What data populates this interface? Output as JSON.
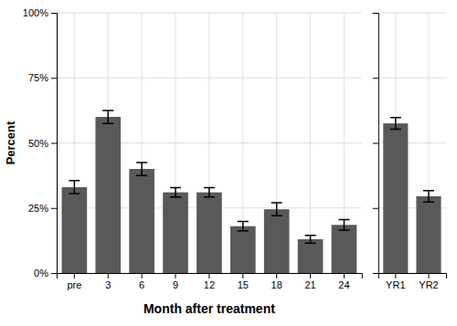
{
  "chart_data": [
    {
      "type": "bar",
      "categories": [
        "pre",
        "3",
        "6",
        "9",
        "12",
        "15",
        "18",
        "21",
        "24"
      ],
      "values": [
        0.33,
        0.6,
        0.4,
        0.31,
        0.31,
        0.18,
        0.245,
        0.13,
        0.185
      ],
      "errors": [
        0.025,
        0.025,
        0.025,
        0.018,
        0.018,
        0.018,
        0.025,
        0.015,
        0.02
      ],
      "color": "#595959",
      "ylabel": "Percent",
      "xlabel": "Month after treatment",
      "ylim": [
        0,
        1.0
      ],
      "yticks": [
        {
          "value": 0,
          "label": "0%"
        },
        {
          "value": 0.25,
          "label": "25%"
        },
        {
          "value": 0.5,
          "label": "50%"
        },
        {
          "value": 0.75,
          "label": "75%"
        },
        {
          "value": 1.0,
          "label": "100%"
        }
      ],
      "grid": true
    },
    {
      "type": "bar",
      "categories": [
        "YR1",
        "YR2"
      ],
      "values": [
        0.575,
        0.295
      ],
      "errors": [
        0.022,
        0.022
      ],
      "color": "#595959",
      "ylim": [
        0,
        1.0
      ],
      "yticks": [
        0,
        0.25,
        0.5,
        0.75,
        1.0
      ],
      "grid": true,
      "tick_labels": "x"
    }
  ]
}
